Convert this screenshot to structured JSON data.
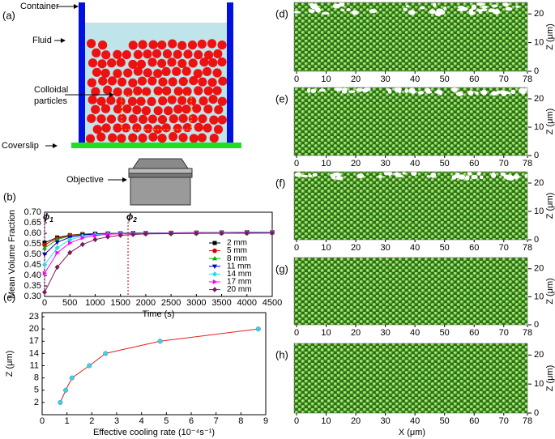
{
  "schematic": {
    "label": "(a)",
    "container": "Container",
    "fluid": "Fluid",
    "particles": [
      "Colloidal",
      "particles"
    ],
    "coverslip": "Coverslip",
    "objective": "Objective"
  },
  "chart_data": [
    {
      "type": "line",
      "label": "(b)",
      "x_label": "Time (s)",
      "y_label": "Mean Volume Fraction",
      "xlim": [
        0,
        4500
      ],
      "xticks": [
        0,
        500,
        1000,
        1500,
        2000,
        2500,
        3000,
        3500,
        4000,
        4500
      ],
      "ylim": [
        0.3,
        0.7
      ],
      "yticks": [
        {
          "value": 0.3,
          "label": "0.30"
        },
        0.35,
        {
          "value": 0.4,
          "label": "0.40"
        },
        0.45,
        {
          "value": 0.5,
          "label": "0.50"
        },
        0.55,
        {
          "value": 0.6,
          "label": "0.60"
        },
        0.65,
        {
          "value": 0.7,
          "label": "0.70"
        }
      ],
      "annotations": [
        {
          "text": "ϕ",
          "sub": "1",
          "x": 0,
          "color": "#e040e0"
        },
        {
          "text": "ϕ",
          "sub": "2",
          "x": 1650,
          "color": "#c00000"
        }
      ],
      "x": [
        0,
        250,
        500,
        750,
        1000,
        1250,
        1500,
        1750,
        2000,
        2500,
        3000,
        3500,
        4000,
        4500
      ],
      "series": [
        {
          "name": "2 mm",
          "color": "#000000",
          "marker": "square",
          "values": [
            0.555,
            0.58,
            0.591,
            0.596,
            0.598,
            0.599,
            0.6,
            0.601,
            0.601,
            0.602,
            0.603,
            0.604,
            0.605,
            0.605
          ]
        },
        {
          "name": "5 mm",
          "color": "#e00000",
          "marker": "circle",
          "values": [
            0.545,
            0.576,
            0.59,
            0.595,
            0.598,
            0.599,
            0.6,
            0.601,
            0.601,
            0.602,
            0.603,
            0.603,
            0.604,
            0.604
          ]
        },
        {
          "name": "8 mm",
          "color": "#00b000",
          "marker": "triangle-up",
          "values": [
            0.53,
            0.57,
            0.587,
            0.594,
            0.597,
            0.599,
            0.6,
            0.6,
            0.601,
            0.601,
            0.602,
            0.602,
            0.603,
            0.603
          ]
        },
        {
          "name": "11 mm",
          "color": "#0000c0",
          "marker": "triangle-down",
          "values": [
            0.5,
            0.557,
            0.581,
            0.592,
            0.596,
            0.598,
            0.599,
            0.6,
            0.6,
            0.601,
            0.602,
            0.602,
            0.603,
            0.603
          ]
        },
        {
          "name": "14 mm",
          "color": "#20e0e0",
          "marker": "diamond",
          "values": [
            0.45,
            0.531,
            0.569,
            0.586,
            0.593,
            0.596,
            0.598,
            0.599,
            0.6,
            0.601,
            0.602,
            0.603,
            0.603,
            0.604
          ]
        },
        {
          "name": "17 mm",
          "color": "#ff00ff",
          "marker": "triangle-right",
          "values": [
            0.41,
            0.507,
            0.554,
            0.578,
            0.589,
            0.595,
            0.597,
            0.598,
            0.599,
            0.6,
            0.601,
            0.601,
            0.602,
            0.602
          ]
        },
        {
          "name": "20 mm",
          "color": "#7a1a5a",
          "marker": "diamond",
          "values": [
            0.32,
            0.439,
            0.508,
            0.547,
            0.57,
            0.583,
            0.59,
            0.594,
            0.597,
            0.598,
            0.599,
            0.6,
            0.6,
            0.601
          ]
        }
      ]
    },
    {
      "type": "line",
      "label": "(c)",
      "x_label": "Effective cooling rate (10⁻⁴s⁻¹)",
      "y_label": "Z (μm)",
      "xlim": [
        0,
        9
      ],
      "xticks": [
        0,
        1,
        2,
        3,
        4,
        5,
        6,
        7,
        8,
        9
      ],
      "ylim": [
        -1,
        24
      ],
      "yticks": [
        2,
        5,
        8,
        11,
        14,
        17,
        20,
        23
      ],
      "x": [
        0.73,
        0.95,
        1.2,
        1.9,
        2.55,
        4.75,
        8.7
      ],
      "series": [
        {
          "color": "#e02020",
          "marker_color": "#40d0e8",
          "marker": "circle",
          "values": [
            2,
            5,
            8,
            11,
            14,
            17,
            20
          ]
        }
      ]
    },
    {
      "type": "image",
      "label": "(d)",
      "y_label": "Z (μm)",
      "xlim": [
        0,
        78
      ],
      "xticks": [
        0,
        10,
        20,
        30,
        40,
        50,
        60,
        70,
        78
      ],
      "ylim": [
        0,
        24
      ],
      "yticks": [
        0,
        10,
        20
      ]
    },
    {
      "type": "image",
      "label": "(e)",
      "y_label": "Z (μm)",
      "xlim": [
        0,
        78
      ],
      "xticks": [
        0,
        10,
        20,
        30,
        40,
        50,
        60,
        70,
        78
      ],
      "ylim": [
        0,
        24
      ],
      "yticks": [
        0,
        10,
        20
      ]
    },
    {
      "type": "image",
      "label": "(f)",
      "y_label": "Z (μm)",
      "xlim": [
        0,
        78
      ],
      "xticks": [
        0,
        10,
        20,
        30,
        40,
        50,
        60,
        70,
        78
      ],
      "ylim": [
        0,
        24
      ],
      "yticks": [
        0,
        10,
        20
      ]
    },
    {
      "type": "image",
      "label": "(g)",
      "y_label": "Z (μm)",
      "xlim": [
        0,
        78
      ],
      "xticks": [
        0,
        10,
        20,
        30,
        40,
        50,
        60,
        70,
        78
      ],
      "ylim": [
        0,
        24
      ],
      "yticks": [
        0,
        10,
        20
      ]
    },
    {
      "type": "image",
      "label": "(h)",
      "y_label": "Z (μm)",
      "x_label": "X (μm)",
      "xlim": [
        0,
        78
      ],
      "xticks": [
        0,
        10,
        20,
        30,
        40,
        50,
        60,
        70,
        78
      ],
      "ylim": [
        0,
        24
      ],
      "yticks": [
        0,
        10,
        20
      ]
    }
  ]
}
